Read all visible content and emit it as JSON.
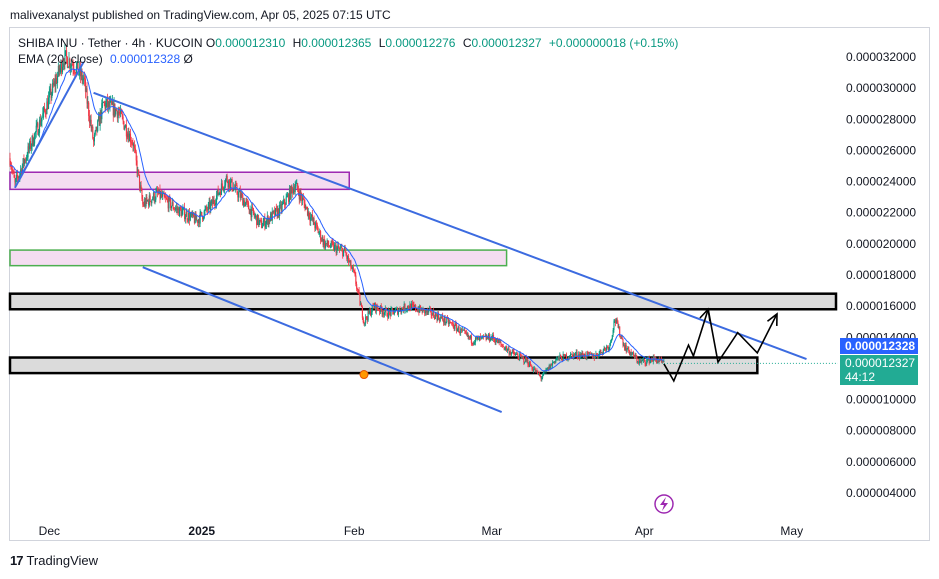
{
  "header": {
    "publisher_line": "malivexanalyst published on TradingView.com, Apr 05, 2025 07:15 UTC"
  },
  "legend": {
    "symbol": "SHIBA INU · Tether · 4h · KUCOIN",
    "open_label": "O",
    "open": "0.000012310",
    "high_label": "H",
    "high": "0.000012365",
    "low_label": "L",
    "low": "0.000012276",
    "close_label": "C",
    "close": "0.000012327",
    "change": "+0.000000018 (+0.15%)",
    "ema_label": "EMA (20, close)",
    "ema_value": "0.000012328",
    "ema_suffix": "Ø"
  },
  "price_tags": {
    "ema": "0.000012328",
    "last": "0.000012327",
    "countdown": "44:12"
  },
  "footer": {
    "brand": "TradingView"
  },
  "colors": {
    "up": "#089981",
    "down": "#f23645",
    "ema": "#2962ff",
    "channel": "#3c6be0",
    "zone_pink": "#f3d9f0",
    "zone_grey": "#d5d5d5"
  },
  "chart_data": {
    "type": "candlestick",
    "y_axis_ticks": [
      "0.000032000",
      "0.000030000",
      "0.000028000",
      "0.000026000",
      "0.000024000",
      "0.000022000",
      "0.000020000",
      "0.000018000",
      "0.000016000",
      "0.000014000",
      "0.000012000",
      "0.000010000",
      "0.000008000",
      "0.000006000",
      "0.000004000"
    ],
    "x_axis_ticks": [
      "Dec",
      "2025",
      "Feb",
      "Mar",
      "Apr",
      "May"
    ],
    "ylim": [
      3e-06,
      3.35e-05
    ],
    "xlim": [
      "2024-11-23",
      "2025-05-10"
    ],
    "price_path": [
      [
        "2024-11-23",
        2.55e-05
      ],
      [
        "2024-11-24",
        2.38e-05
      ],
      [
        "2024-11-27",
        2.62e-05
      ],
      [
        "2024-11-30",
        2.85e-05
      ],
      [
        "2024-12-02",
        3.02e-05
      ],
      [
        "2024-12-04",
        3.2e-05
      ],
      [
        "2024-12-06",
        3.15e-05
      ],
      [
        "2024-12-08",
        3.05e-05
      ],
      [
        "2024-12-10",
        2.65e-05
      ],
      [
        "2024-12-12",
        2.9e-05
      ],
      [
        "2024-12-15",
        2.85e-05
      ],
      [
        "2024-12-18",
        2.65e-05
      ],
      [
        "2024-12-20",
        2.25e-05
      ],
      [
        "2024-12-23",
        2.32e-05
      ],
      [
        "2024-12-27",
        2.22e-05
      ],
      [
        "2024-12-31",
        2.15e-05
      ],
      [
        "2025-01-03",
        2.25e-05
      ],
      [
        "2025-01-06",
        2.42e-05
      ],
      [
        "2025-01-09",
        2.3e-05
      ],
      [
        "2025-01-13",
        2.12e-05
      ],
      [
        "2025-01-17",
        2.22e-05
      ],
      [
        "2025-01-20",
        2.38e-05
      ],
      [
        "2025-01-23",
        2.18e-05
      ],
      [
        "2025-01-26",
        2e-05
      ],
      [
        "2025-01-30",
        1.95e-05
      ],
      [
        "2025-02-01",
        1.8e-05
      ],
      [
        "2025-02-03",
        1.5e-05
      ],
      [
        "2025-02-05",
        1.6e-05
      ],
      [
        "2025-02-08",
        1.55e-05
      ],
      [
        "2025-02-12",
        1.6e-05
      ],
      [
        "2025-02-17",
        1.55e-05
      ],
      [
        "2025-02-21",
        1.48e-05
      ],
      [
        "2025-02-25",
        1.38e-05
      ],
      [
        "2025-03-01",
        1.4e-05
      ],
      [
        "2025-03-05",
        1.3e-05
      ],
      [
        "2025-03-08",
        1.25e-05
      ],
      [
        "2025-03-11",
        1.14e-05
      ],
      [
        "2025-03-14",
        1.26e-05
      ],
      [
        "2025-03-18",
        1.29e-05
      ],
      [
        "2025-03-22",
        1.28e-05
      ],
      [
        "2025-03-25",
        1.35e-05
      ],
      [
        "2025-03-26",
        1.52e-05
      ],
      [
        "2025-03-28",
        1.34e-05
      ],
      [
        "2025-03-31",
        1.24e-05
      ],
      [
        "2025-04-03",
        1.26e-05
      ],
      [
        "2025-04-05",
        1.23e-05
      ]
    ],
    "projection_path": [
      [
        "2025-04-05",
        1.23e-05
      ],
      [
        "2025-04-07",
        1.12e-05
      ],
      [
        "2025-04-10",
        1.35e-05
      ],
      [
        "2025-04-11",
        1.28e-05
      ],
      [
        "2025-04-14",
        1.58e-05
      ],
      [
        "2025-04-16",
        1.24e-05
      ],
      [
        "2025-04-20",
        1.43e-05
      ],
      [
        "2025-04-24",
        1.3e-05
      ],
      [
        "2025-04-28",
        1.55e-05
      ]
    ],
    "channel_lines": [
      [
        [
          "2024-12-10",
          2.97e-05
        ],
        [
          "2025-05-04",
          1.26e-05
        ]
      ],
      [
        [
          "2024-12-20",
          1.85e-05
        ],
        [
          "2025-03-03",
          9.2e-06
        ]
      ],
      [
        [
          "2024-11-24",
          2.36e-05
        ],
        [
          "2024-12-08",
          3.17e-05
        ]
      ]
    ],
    "zones": [
      {
        "style": "pink",
        "from": "2024-11-23",
        "to": "2025-01-31",
        "low": 2.35e-05,
        "high": 2.46e-05
      },
      {
        "style": "pink",
        "from": "2024-11-23",
        "to": "2025-03-04",
        "low": 1.86e-05,
        "high": 1.96e-05
      },
      {
        "style": "grey",
        "from": "2024-11-23",
        "to": "2025-05-10",
        "low": 1.58e-05,
        "high": 1.68e-05
      },
      {
        "style": "grey",
        "from": "2024-11-23",
        "to": "2025-04-24",
        "low": 1.17e-05,
        "high": 1.27e-05
      }
    ]
  }
}
